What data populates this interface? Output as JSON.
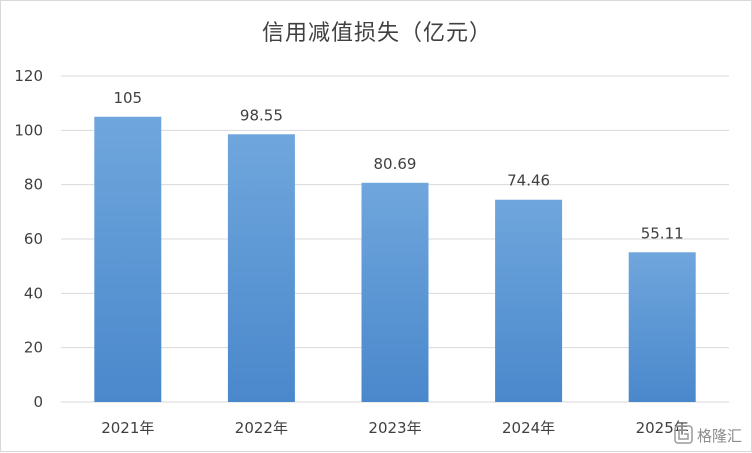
{
  "chart_data": {
    "type": "bar",
    "title": "信用减值损失（亿元）",
    "categories": [
      "2021年",
      "2022年",
      "2023年",
      "2024年",
      "2025年"
    ],
    "values": [
      105,
      98.55,
      80.69,
      74.46,
      55.11
    ],
    "data_labels": [
      "105",
      "98.55",
      "80.69",
      "74.46",
      "55.11"
    ],
    "yticks": [
      "0",
      "20",
      "40",
      "60",
      "80",
      "100",
      "120"
    ],
    "ylim": [
      0,
      120
    ],
    "grid": true,
    "legend": "none",
    "bar_color_top": "#6fa6dc",
    "bar_color_bottom": "#4a88cc",
    "grid_color": "#d9d9d9"
  },
  "watermark": {
    "text": "格隆汇",
    "icon": "glh-logo-icon"
  }
}
